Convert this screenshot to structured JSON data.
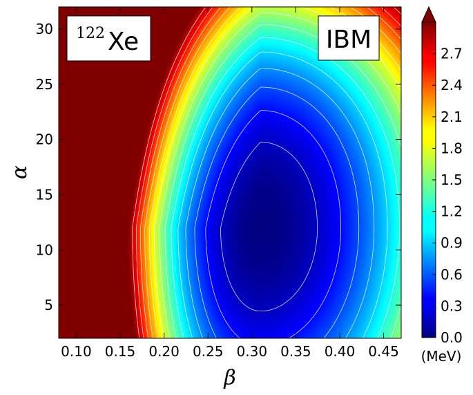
{
  "chart_data": {
    "type": "heatmap",
    "title": "",
    "xlabel": "β",
    "ylabel": "α",
    "xlim": [
      0.08,
      0.47
    ],
    "ylim": [
      2,
      32
    ],
    "x_ticks": [
      "0.10",
      "0.15",
      "0.20",
      "0.25",
      "0.30",
      "0.35",
      "0.40",
      "0.45"
    ],
    "x_tick_values": [
      0.1,
      0.15,
      0.2,
      0.25,
      0.3,
      0.35,
      0.4,
      0.45
    ],
    "y_ticks": [
      "5",
      "10",
      "15",
      "20",
      "25",
      "30"
    ],
    "y_tick_values": [
      5,
      10,
      15,
      20,
      25,
      30
    ],
    "colorbar": {
      "label": "(MeV)",
      "range": [
        0.0,
        3.0
      ],
      "ticks": [
        "0.0",
        "0.3",
        "0.6",
        "0.9",
        "1.2",
        "1.5",
        "1.8",
        "2.1",
        "2.4",
        "2.7"
      ],
      "tick_values": [
        0.0,
        0.3,
        0.6,
        0.9,
        1.2,
        1.5,
        1.8,
        2.1,
        2.4,
        2.7
      ],
      "extend": "max",
      "colormap": "jet"
    },
    "minimum": {
      "beta": 0.31,
      "alpha": 12,
      "energy": 0.0
    },
    "contour_interval": 0.2,
    "annotations": {
      "nucleus_mass": "122",
      "nucleus_symbol": "Xe",
      "model": "IBM"
    }
  }
}
